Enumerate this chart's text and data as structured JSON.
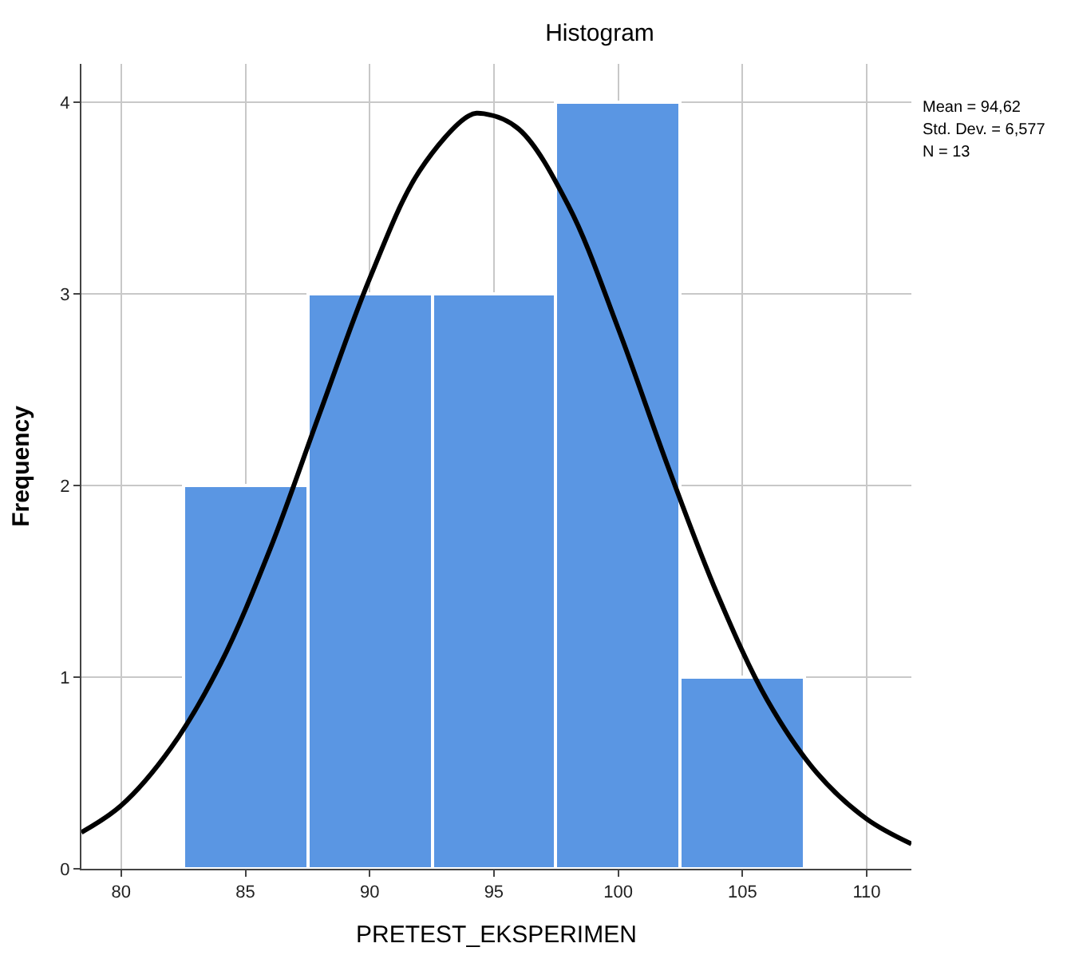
{
  "chart_data": {
    "type": "histogram",
    "title": "Histogram",
    "xlabel": "PRETEST_EKSPERIMEN",
    "ylabel": "Frequency",
    "color": "#5a96e3",
    "bins": [
      82.5,
      87.5,
      92.5,
      97.5,
      102.5,
      107.5
    ],
    "values": [
      2,
      3,
      3,
      4,
      1
    ],
    "series": [
      {
        "type": "line",
        "color": "#000000",
        "x": [
          78.4,
          80,
          82,
          84,
          86,
          88,
          90,
          92,
          94,
          94.6,
          96,
          98,
          100,
          102,
          104,
          106,
          108,
          110,
          111.8
        ],
        "values": [
          0.19,
          0.33,
          0.63,
          1.07,
          1.67,
          2.38,
          3.08,
          3.64,
          3.93,
          3.94,
          3.86,
          3.46,
          2.82,
          2.1,
          1.43,
          0.88,
          0.5,
          0.26,
          0.13
        ]
      }
    ],
    "annotations": [
      "Mean = 94,62",
      "Std. Dev. = 6,577",
      "N = 13"
    ],
    "xlim": [
      78.4,
      111.8
    ],
    "xticks": [
      80,
      85,
      90,
      95,
      100,
      105,
      110
    ],
    "ylim": [
      0,
      4.2
    ],
    "yticks": [
      0,
      1,
      2,
      3,
      4
    ],
    "grid": true,
    "marker": "none",
    "line_style": "solid"
  }
}
